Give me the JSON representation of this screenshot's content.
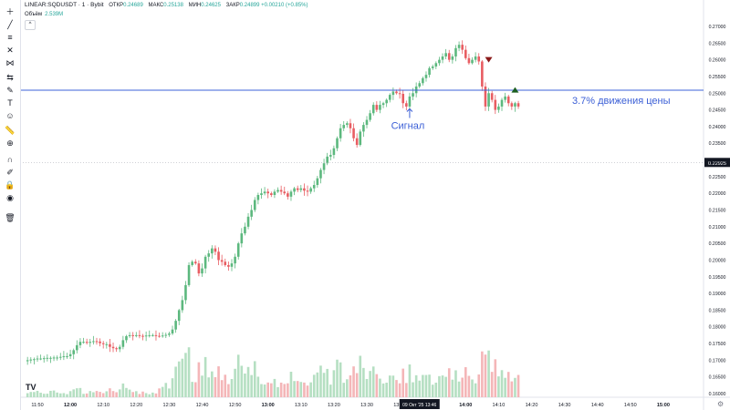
{
  "header": {
    "symbol": "LINEAR:SQDUSDT · 1 · Bybit",
    "fields": [
      {
        "label": "ОТКР",
        "value": "0.24689"
      },
      {
        "label": "МАКС",
        "value": "0.25138"
      },
      {
        "label": "МИН",
        "value": "0.24625"
      },
      {
        "label": "ЗАКР",
        "value": "0.24899 +0.00210 (+0.85%)"
      }
    ],
    "volume_label": "Объём",
    "volume_value": "2.539M"
  },
  "toolbar": {
    "icons": [
      "crosshair-icon",
      "trend-line-icon",
      "horizontal-lines-icon",
      "fib-icon",
      "pattern-icon",
      "forecast-icon",
      "brush-icon",
      "text-icon",
      "emoji-icon",
      "ruler-icon",
      "zoom-icon",
      "magnet-icon",
      "lock-drawings-icon",
      "lock-icon",
      "eye-icon",
      "trash-icon"
    ]
  },
  "annotations": {
    "signal_label": "Сигнал",
    "move_label": "3.7% движения цены"
  },
  "colors": {
    "up": "#5cb87e",
    "down": "#e85d62",
    "up_volume": "#b5dfc2",
    "down_volume": "#f4b6b8",
    "level_line": "#3d63d8",
    "annotation_text": "#3b5fd6"
  },
  "chart_data": {
    "type": "candlestick",
    "price_axis_ticks": [
      "0.27000",
      "0.26500",
      "0.26000",
      "0.25500",
      "0.25000",
      "0.24500",
      "0.24000",
      "0.23500",
      "0.23000",
      "0.22500",
      "0.22000",
      "0.21500",
      "0.21000",
      "0.20500",
      "0.20000",
      "0.19500",
      "0.19000",
      "0.18500",
      "0.18000",
      "0.17500",
      "0.17000",
      "0.16500",
      "0.16000"
    ],
    "time_axis_ticks": [
      "11:50",
      "12:00",
      "12:10",
      "12:20",
      "12:30",
      "12:40",
      "12:50",
      "13:00",
      "13:10",
      "13:20",
      "13:30",
      "13:40",
      "13:50",
      "14:00",
      "14:10",
      "14:20",
      "14:30",
      "14:40",
      "14:50",
      "15:00"
    ],
    "current_price": "0.22925",
    "current_price_level": 0.22925,
    "cursor_time_label": "09 Окт '25   13:46",
    "level_line_price": 0.2509,
    "signal_time": "13:43",
    "signal_price": 0.2453,
    "sell_marker": {
      "time": "14:07",
      "price": 0.26
    },
    "buy_marker": {
      "time": "14:15",
      "price": 0.251
    },
    "candles_ohlc_note": "approximate 1-minute close prices from 11:47 to 14:20",
    "closes": [
      0.17,
      0.1702,
      0.1703,
      0.1705,
      0.1705,
      0.1706,
      0.1707,
      0.1707,
      0.1708,
      0.1708,
      0.171,
      0.1712,
      0.1712,
      0.1718,
      0.173,
      0.1745,
      0.1755,
      0.1755,
      0.1752,
      0.1755,
      0.1757,
      0.1756,
      0.1751,
      0.1748,
      0.1748,
      0.174,
      0.1736,
      0.1733,
      0.174,
      0.176,
      0.1772,
      0.1775,
      0.1774,
      0.1775,
      0.1773,
      0.1772,
      0.1774,
      0.1775,
      0.1775,
      0.1773,
      0.1772,
      0.1774,
      0.1776,
      0.178,
      0.1792,
      0.1818,
      0.185,
      0.188,
      0.1925,
      0.1985,
      0.1995,
      0.199,
      0.196,
      0.1975,
      0.201,
      0.202,
      0.2035,
      0.2025,
      0.2,
      0.1995,
      0.1985,
      0.198,
      0.199,
      0.201,
      0.205,
      0.208,
      0.21,
      0.213,
      0.215,
      0.218,
      0.2195,
      0.22,
      0.2205,
      0.22,
      0.2195,
      0.2205,
      0.221,
      0.2205,
      0.22,
      0.219,
      0.2205,
      0.2215,
      0.221,
      0.2215,
      0.2208,
      0.2205,
      0.2215,
      0.2225,
      0.2245,
      0.227,
      0.229,
      0.231,
      0.2315,
      0.2335,
      0.2365,
      0.2395,
      0.2405,
      0.241,
      0.2395,
      0.2365,
      0.2345,
      0.2385,
      0.2405,
      0.242,
      0.244,
      0.2465,
      0.245,
      0.2465,
      0.247,
      0.248,
      0.2495,
      0.2505,
      0.25,
      0.2498,
      0.247,
      0.246,
      0.249,
      0.25,
      0.252,
      0.253,
      0.2545,
      0.2555,
      0.2575,
      0.258,
      0.259,
      0.26,
      0.261,
      0.262,
      0.26,
      0.261,
      0.2635,
      0.2645,
      0.263,
      0.2605,
      0.259,
      0.26,
      0.261,
      0.2595,
      0.252,
      0.246,
      0.25,
      0.248,
      0.245,
      0.246,
      0.248,
      0.249,
      0.247,
      0.246,
      0.247,
      0.246
    ]
  }
}
